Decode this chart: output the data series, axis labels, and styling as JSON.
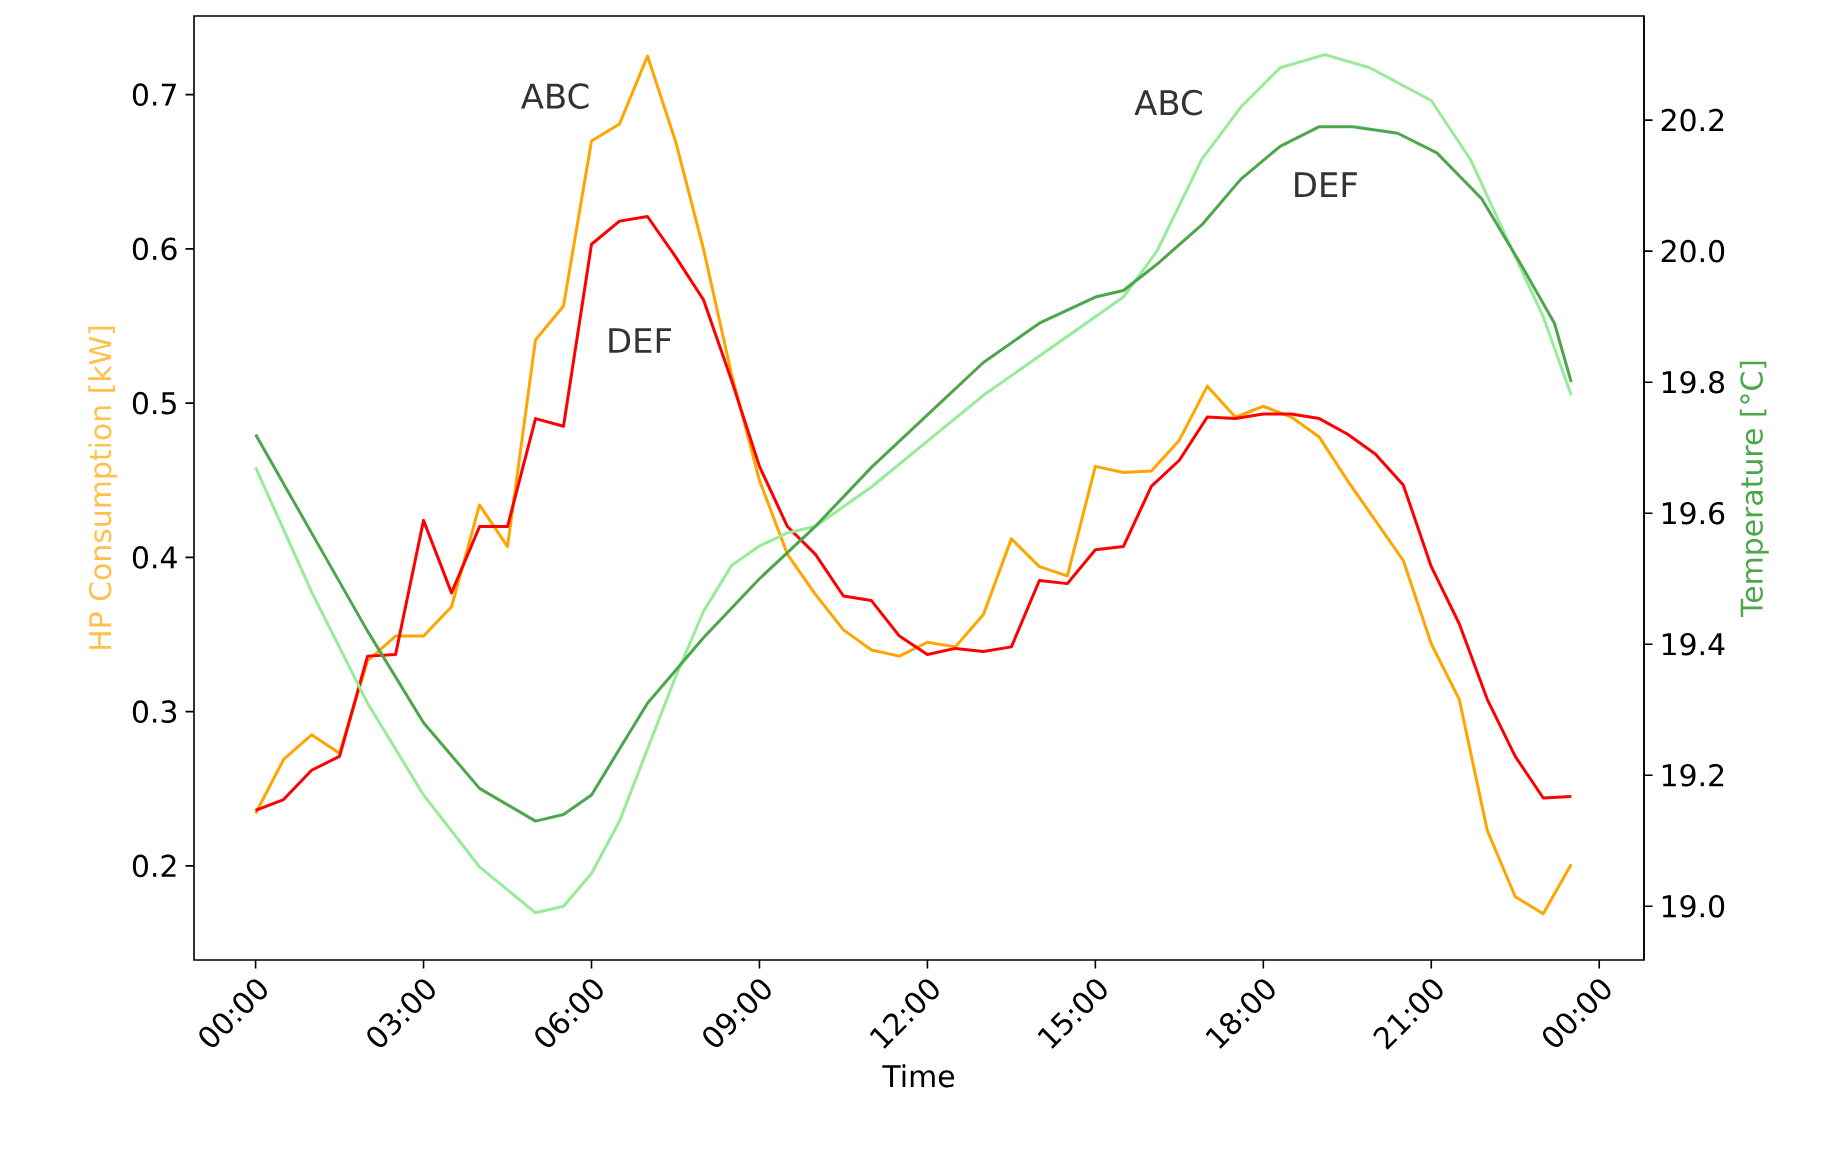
{
  "chart_data": {
    "type": "line",
    "xlabel": "Time",
    "ylabel": "HP Consumption [kW]",
    "y2label": "Temperature [°C]",
    "xlim": [
      -1.1,
      24.8
    ],
    "xticks": [
      {
        "value": 0,
        "label": "00:00"
      },
      {
        "value": 3,
        "label": "03:00"
      },
      {
        "value": 6,
        "label": "06:00"
      },
      {
        "value": 9,
        "label": "09:00"
      },
      {
        "value": 12,
        "label": "12:00"
      },
      {
        "value": 15,
        "label": "15:00"
      },
      {
        "value": 18,
        "label": "18:00"
      },
      {
        "value": 21,
        "label": "21:00"
      },
      {
        "value": 24,
        "label": "00:00"
      }
    ],
    "ylim": [
      0.139,
      0.751
    ],
    "yticks": [
      0.2,
      0.3,
      0.4,
      0.5,
      0.6,
      0.7
    ],
    "y2lim": [
      18.918,
      20.359
    ],
    "y2ticks": [
      {
        "value": 19.0,
        "label": "19.0"
      },
      19.2,
      19.4,
      19.6,
      19.8,
      {
        "value": 20.0,
        "label": "20.0"
      },
      20.2
    ],
    "series": [
      {
        "name": "ABC",
        "color": "#ffa500",
        "x": [
          0,
          0.5,
          1,
          1.5,
          2,
          2.5,
          3,
          3.5,
          4,
          4.5,
          5,
          5.5,
          6,
          6.5,
          7,
          7.5,
          8,
          8.5,
          9,
          9.5,
          10,
          10.5,
          11,
          11.5,
          12,
          12.5,
          13,
          13.5,
          14,
          14.5,
          15,
          15.5,
          16,
          16.5,
          17,
          17.5,
          18,
          18.5,
          19,
          19.5,
          20,
          20.5,
          21,
          21.5,
          22,
          22.5,
          23,
          23.5
        ],
        "values": [
          0.234,
          0.269,
          0.285,
          0.273,
          0.333,
          0.349,
          0.349,
          0.368,
          0.434,
          0.407,
          0.541,
          0.563,
          0.67,
          0.681,
          0.725,
          0.67,
          0.6,
          0.519,
          0.45,
          0.402,
          0.376,
          0.353,
          0.34,
          0.336,
          0.345,
          0.342,
          0.363,
          0.412,
          0.394,
          0.388,
          0.459,
          0.455,
          0.456,
          0.476,
          0.511,
          0.491,
          0.498,
          0.491,
          0.478,
          0.45,
          0.424,
          0.398,
          0.344,
          0.308,
          0.223,
          0.18,
          0.169,
          0.201
        ]
      },
      {
        "name": "DEF",
        "color": "#ff0000",
        "x": [
          0,
          0.5,
          1,
          1.5,
          2,
          2.5,
          3,
          3.5,
          4,
          4.5,
          5,
          5.5,
          6,
          6.5,
          7,
          7.5,
          8,
          8.5,
          9,
          9.5,
          10,
          10.5,
          11,
          11.5,
          12,
          12.5,
          13,
          13.5,
          14,
          14.5,
          15,
          15.5,
          16,
          16.5,
          17,
          17.5,
          18,
          18.5,
          19,
          19.5,
          20,
          20.5,
          21,
          21.5,
          22,
          22.5,
          23,
          23.5
        ],
        "values": [
          0.236,
          0.243,
          0.262,
          0.271,
          0.336,
          0.337,
          0.424,
          0.377,
          0.42,
          0.42,
          0.49,
          0.485,
          0.603,
          0.618,
          0.621,
          0.595,
          0.567,
          0.515,
          0.459,
          0.42,
          0.402,
          0.375,
          0.372,
          0.349,
          0.337,
          0.341,
          0.339,
          0.342,
          0.385,
          0.383,
          0.405,
          0.407,
          0.446,
          0.463,
          0.491,
          0.49,
          0.493,
          0.493,
          0.49,
          0.48,
          0.467,
          0.447,
          0.394,
          0.357,
          0.308,
          0.271,
          0.244,
          0.245
        ]
      },
      {
        "name": "ABC",
        "color": "#98eb98",
        "axis": "y2",
        "x": [
          0,
          1,
          2,
          3,
          4,
          5,
          5.5,
          6,
          6.5,
          7,
          7.5,
          8,
          8.5,
          9,
          9.5,
          10,
          11,
          12,
          13,
          14,
          15,
          15.5,
          16.1,
          16.9,
          17.6,
          18.3,
          19.1,
          19.9,
          21.0,
          21.7,
          22.4,
          23.0,
          23.5
        ],
        "values": [
          19.67,
          19.48,
          19.31,
          19.17,
          19.06,
          18.99,
          19.0,
          19.05,
          19.13,
          19.24,
          19.35,
          19.45,
          19.52,
          19.55,
          19.57,
          19.58,
          19.64,
          19.71,
          19.78,
          19.84,
          19.9,
          19.93,
          20.0,
          20.14,
          20.22,
          20.28,
          20.3,
          20.28,
          20.23,
          20.14,
          20.01,
          19.9,
          19.78
        ]
      },
      {
        "name": "DEF",
        "color": "#4ca64c",
        "axis": "y2",
        "x": [
          0,
          1,
          2,
          3,
          4,
          5,
          5.5,
          6,
          6.5,
          7,
          8,
          9,
          10,
          11,
          12,
          13,
          14,
          15,
          15.5,
          16.1,
          16.9,
          17.6,
          18.3,
          19.0,
          19.6,
          20.4,
          21.1,
          21.9,
          22.6,
          23.2,
          23.5
        ],
        "values": [
          19.72,
          19.57,
          19.42,
          19.28,
          19.18,
          19.13,
          19.14,
          19.17,
          19.24,
          19.31,
          19.41,
          19.5,
          19.58,
          19.67,
          19.75,
          19.83,
          19.89,
          19.93,
          19.94,
          19.98,
          20.04,
          20.11,
          20.16,
          20.19,
          20.19,
          20.18,
          20.15,
          20.08,
          19.98,
          19.89,
          19.8
        ]
      }
    ]
  }
}
